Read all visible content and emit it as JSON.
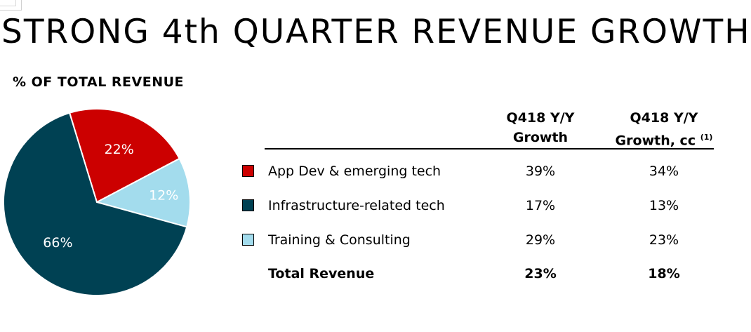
{
  "slide": {
    "title": "STRONG 4th QUARTER REVENUE GROWTH",
    "subtitle": "% OF TOTAL REVENUE"
  },
  "chart_data": {
    "type": "pie",
    "title": "% OF TOTAL REVENUE",
    "slices": [
      {
        "label": "App Dev & emerging tech",
        "value": 22,
        "display": "22%",
        "color": "#cc0000"
      },
      {
        "label": "Training & Consulting",
        "value": 12,
        "display": "12%",
        "color": "#a3dced"
      },
      {
        "label": "Infrastructure-related tech",
        "value": 66,
        "display": "66%",
        "color": "#004153"
      }
    ],
    "start_angle_deg": -17,
    "direction": "clockwise"
  },
  "table": {
    "headers": [
      {
        "line1": "Q418 Y/Y",
        "line2": "Growth",
        "sup": ""
      },
      {
        "line1": "Q418 Y/Y",
        "line2": "Growth, cc",
        "sup": "(1)"
      }
    ],
    "rows": [
      {
        "label": "App Dev & emerging tech",
        "swatch": "#cc0000",
        "growth": "39%",
        "growth_cc": "34%",
        "bold": false
      },
      {
        "label": "Infrastructure-related tech",
        "swatch": "#004153",
        "growth": "17%",
        "growth_cc": "13%",
        "bold": false
      },
      {
        "label": "Training & Consulting",
        "swatch": "#a3dced",
        "growth": "29%",
        "growth_cc": "23%",
        "bold": false
      },
      {
        "label": "Total Revenue",
        "swatch": "",
        "growth": "23%",
        "growth_cc": "18%",
        "bold": true
      }
    ]
  }
}
